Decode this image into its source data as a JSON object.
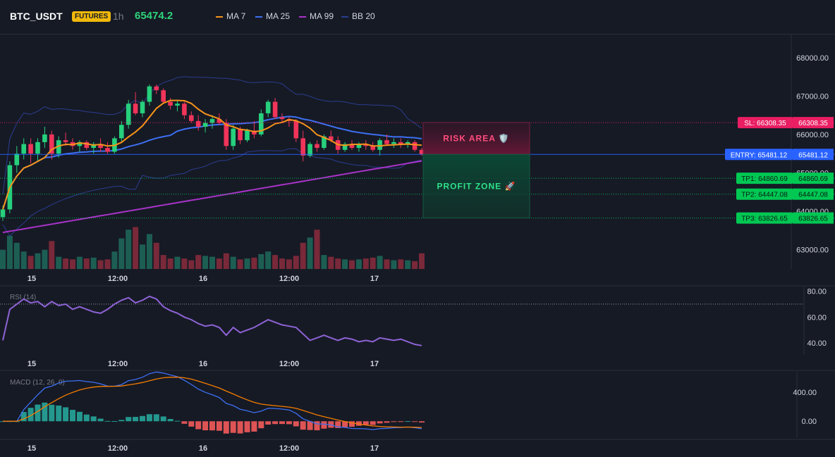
{
  "header": {
    "symbol": "BTC_USDT",
    "badge": "FUTURES",
    "timeframe": "1h",
    "price": "65474.2",
    "legend": [
      {
        "name": "MA 7",
        "color": "#f7931a"
      },
      {
        "name": "MA 25",
        "color": "#3d6ff2"
      },
      {
        "name": "MA 99",
        "color": "#a933c9"
      },
      {
        "name": "BB 20",
        "color": "#2a3d8f"
      }
    ]
  },
  "zones": {
    "risk_label": "RISK AREA 🛡️",
    "profit_label": "PROFIT ZONE 🚀"
  },
  "levels": [
    {
      "key": "sl",
      "tag": "SL: 66308.35",
      "value": 66308.35,
      "value_label": "66308.35",
      "color": "#e91e63",
      "style": "dotted"
    },
    {
      "key": "entry",
      "tag": "ENTRY: 65481.12",
      "value": 65481.12,
      "value_label": "65481.12",
      "color": "#2962ff",
      "style": "solid"
    },
    {
      "key": "tp1",
      "tag": "TP1: 64860.69",
      "value": 64860.69,
      "value_label": "64860.69",
      "color": "#00c853",
      "style": "dotted"
    },
    {
      "key": "tp2",
      "tag": "TP2: 64447.08",
      "value": 64447.08,
      "value_label": "64447.08",
      "color": "#00c853",
      "style": "dotted"
    },
    {
      "key": "tp3",
      "tag": "TP3: 63826.65",
      "value": 63826.65,
      "value_label": "63826.65",
      "color": "#00c853",
      "style": "dotted"
    }
  ],
  "chart_data": [
    {
      "type": "candlestick",
      "name": "price",
      "ylim": [
        62500,
        68600
      ],
      "y_ticks": [
        "68000.00",
        "67000.00",
        "66000.00",
        "65000.00",
        "64000.00",
        "63000.00"
      ],
      "x_ticks": [
        "15",
        "12:00",
        "16",
        "12:00",
        "17"
      ],
      "candles": [
        [
          63850,
          64150,
          63750,
          64050
        ],
        [
          64050,
          65300,
          63950,
          65200
        ],
        [
          65200,
          65700,
          65000,
          65500
        ],
        [
          65500,
          65900,
          65350,
          65750
        ],
        [
          65750,
          65900,
          65250,
          65500
        ],
        [
          65500,
          65900,
          65300,
          65800
        ],
        [
          65800,
          66200,
          65650,
          66000
        ],
        [
          66000,
          66100,
          65350,
          65500
        ],
        [
          65500,
          65950,
          65400,
          65850
        ],
        [
          65850,
          66050,
          65700,
          65800
        ],
        [
          65800,
          65900,
          65600,
          65700
        ],
        [
          65700,
          65850,
          65550,
          65800
        ],
        [
          65800,
          65850,
          65600,
          65650
        ],
        [
          65650,
          65800,
          65500,
          65750
        ],
        [
          65750,
          65900,
          65550,
          65650
        ],
        [
          65650,
          65800,
          65500,
          65550
        ],
        [
          65550,
          65950,
          65500,
          65900
        ],
        [
          65900,
          66350,
          65800,
          66250
        ],
        [
          66250,
          66900,
          66150,
          66800
        ],
        [
          66800,
          67100,
          66500,
          66550
        ],
        [
          66550,
          66900,
          66450,
          66850
        ],
        [
          66850,
          67300,
          66750,
          67250
        ],
        [
          67250,
          67300,
          67050,
          67150
        ],
        [
          67150,
          67200,
          66800,
          66850
        ],
        [
          66850,
          66950,
          66650,
          66750
        ],
        [
          66750,
          66900,
          66600,
          66800
        ],
        [
          66800,
          66850,
          66400,
          66500
        ],
        [
          66500,
          66600,
          66300,
          66350
        ],
        [
          66350,
          66500,
          66100,
          66200
        ],
        [
          66200,
          66400,
          66050,
          66300
        ],
        [
          66300,
          66500,
          66150,
          66400
        ],
        [
          66400,
          66550,
          66250,
          66300
        ],
        [
          66300,
          66400,
          65600,
          65700
        ],
        [
          65700,
          66250,
          65600,
          66150
        ],
        [
          66150,
          66200,
          65750,
          65850
        ],
        [
          65850,
          66150,
          65800,
          66100
        ],
        [
          66100,
          66350,
          65900,
          66000
        ],
        [
          66000,
          66650,
          65950,
          66550
        ],
        [
          66550,
          66900,
          66450,
          66850
        ],
        [
          66850,
          66950,
          66400,
          66450
        ],
        [
          66450,
          66550,
          66300,
          66400
        ],
        [
          66400,
          66450,
          66200,
          66350
        ],
        [
          66350,
          66400,
          65800,
          65900
        ],
        [
          65900,
          66100,
          65300,
          65450
        ],
        [
          65450,
          65800,
          65400,
          65750
        ],
        [
          65750,
          65850,
          65550,
          65650
        ],
        [
          65650,
          66000,
          65600,
          65950
        ],
        [
          65950,
          66100,
          65800,
          65850
        ],
        [
          65850,
          65950,
          65500,
          65600
        ],
        [
          65600,
          65800,
          65550,
          65750
        ],
        [
          65750,
          65850,
          65600,
          65650
        ],
        [
          65650,
          65800,
          65550,
          65750
        ],
        [
          65750,
          65850,
          65600,
          65700
        ],
        [
          65700,
          65800,
          65550,
          65600
        ],
        [
          65600,
          65900,
          65450,
          65850
        ],
        [
          65850,
          66000,
          65700,
          65750
        ],
        [
          65750,
          65900,
          65650,
          65800
        ],
        [
          65800,
          65900,
          65650,
          65750
        ],
        [
          65750,
          65850,
          65650,
          65800
        ],
        [
          65800,
          65850,
          65550,
          65600
        ],
        [
          65600,
          65650,
          65450,
          65480
        ]
      ],
      "volume": [
        22,
        38,
        30,
        20,
        15,
        18,
        22,
        32,
        14,
        12,
        11,
        14,
        12,
        13,
        10,
        11,
        20,
        35,
        45,
        48,
        28,
        40,
        30,
        16,
        12,
        14,
        12,
        10,
        16,
        15,
        14,
        12,
        18,
        14,
        11,
        12,
        13,
        17,
        20,
        16,
        12,
        11,
        15,
        30,
        36,
        45,
        16,
        14,
        12,
        11,
        10,
        11,
        12,
        13,
        15,
        11,
        10,
        11,
        10,
        9,
        18
      ],
      "volume_max": 50
    },
    {
      "type": "line",
      "name": "RSI (14)",
      "ylim": [
        33,
        83
      ],
      "y_ticks": [
        "80.00",
        "60.00",
        "40.00"
      ],
      "x_ticks": [
        "15",
        "12:00",
        "16",
        "12:00",
        "17"
      ],
      "reference_line": 70,
      "values": [
        42,
        66,
        70,
        74,
        71,
        72,
        68,
        72,
        69,
        70,
        66,
        68,
        66,
        64,
        63,
        66,
        70,
        73,
        75,
        71,
        73,
        76,
        74,
        68,
        65,
        63,
        60,
        58,
        55,
        53,
        54,
        52,
        46,
        52,
        48,
        50,
        52,
        55,
        58,
        56,
        54,
        53,
        52,
        47,
        42,
        44,
        46,
        44,
        42,
        44,
        43,
        41,
        42,
        41,
        44,
        43,
        42,
        43,
        41,
        39,
        38
      ]
    },
    {
      "type": "line",
      "name": "MACD (12, 26, 9)",
      "ylim": [
        -230,
        680
      ],
      "y_ticks": [
        "400.00",
        "0.00"
      ],
      "x_ticks": [
        "15",
        "12:00",
        "16",
        "12:00",
        "17"
      ]
    }
  ],
  "panels": {
    "rsi_label": "RSI (14)",
    "macd_label": "MACD (12, 26, 9)"
  }
}
